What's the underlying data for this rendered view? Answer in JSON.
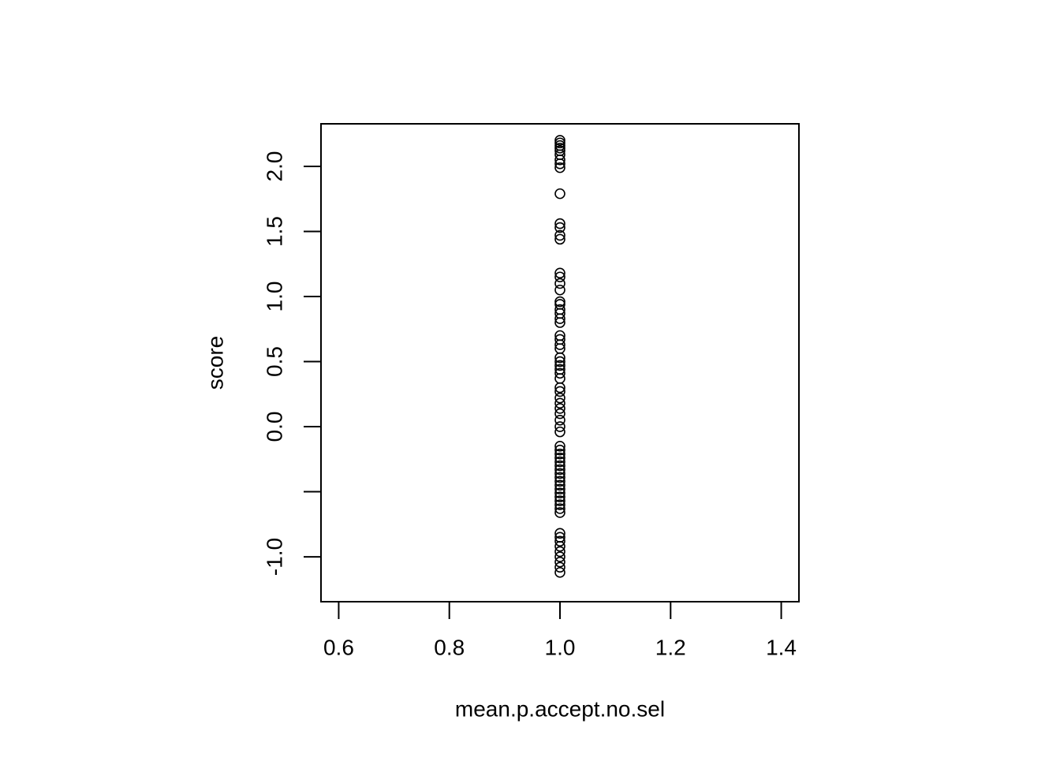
{
  "chart_data": {
    "type": "scatter",
    "xlabel": "mean.p.accept.no.sel",
    "ylabel": "score",
    "xlim": [
      0.568,
      1.432
    ],
    "ylim": [
      -1.345,
      2.327
    ],
    "xticks": [
      0.6,
      0.8,
      {
        "value": 1.0,
        "label": "1.0"
      },
      1.2,
      1.4
    ],
    "yticks": [
      {
        "value": -1.0,
        "label": "-1.0"
      },
      {
        "value": -0.5,
        "label": null
      },
      {
        "value": 0.0,
        "label": "0.0"
      },
      0.5,
      {
        "value": 1.0,
        "label": "1.0"
      },
      1.5,
      {
        "value": 2.0,
        "label": "2.0"
      }
    ],
    "color": "#000000",
    "series": [
      {
        "x": [
          1,
          1,
          1,
          1,
          1,
          1,
          1,
          1,
          1,
          1,
          1,
          1,
          1,
          1,
          1,
          1,
          1,
          1,
          1,
          1,
          1,
          1,
          1,
          1,
          1,
          1,
          1,
          1,
          1,
          1,
          1,
          1,
          1,
          1,
          1,
          1,
          1,
          1,
          1,
          1,
          1,
          1,
          1,
          1,
          1,
          1,
          1,
          1,
          1,
          1,
          1,
          1,
          1,
          1,
          1,
          1,
          1,
          1,
          1,
          1,
          1,
          1,
          1,
          1,
          1,
          1,
          1,
          1,
          1,
          1
        ],
        "values": [
          2.2,
          2.18,
          2.16,
          2.14,
          2.12,
          2.09,
          2.05,
          2.02,
          1.99,
          1.79,
          1.56,
          1.53,
          1.47,
          1.44,
          1.18,
          1.15,
          1.1,
          1.05,
          0.96,
          0.94,
          0.9,
          0.87,
          0.83,
          0.8,
          0.7,
          0.67,
          0.63,
          0.6,
          0.53,
          0.5,
          0.47,
          0.44,
          0.41,
          0.37,
          0.3,
          0.27,
          0.22,
          0.18,
          0.14,
          0.1,
          0.05,
          0,
          -0.04,
          -0.15,
          -0.18,
          -0.21,
          -0.24,
          -0.27,
          -0.3,
          -0.33,
          -0.36,
          -0.39,
          -0.42,
          -0.45,
          -0.48,
          -0.51,
          -0.54,
          -0.57,
          -0.6,
          -0.63,
          -0.66,
          -0.82,
          -0.85,
          -0.88,
          -0.92,
          -0.96,
          -1,
          -1.04,
          -1.08,
          -1.12
        ]
      }
    ]
  }
}
